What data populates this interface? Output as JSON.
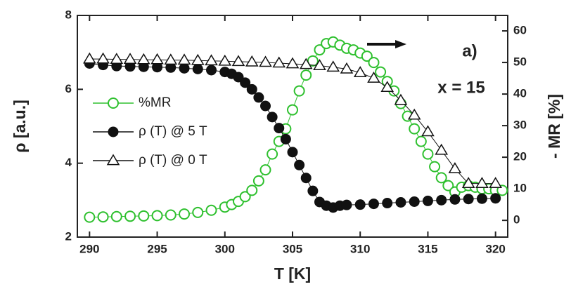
{
  "chart_data": {
    "type": "line",
    "x_label": "T [K]",
    "y_label": "ρ [a.u.]",
    "y2_label": "- MR [%]",
    "annotations": [
      "a)",
      "x = 15"
    ],
    "xlim": [
      289.1,
      320.9
    ],
    "xticks": [
      290,
      295,
      300,
      305,
      310,
      315,
      320
    ],
    "ylim": [
      2,
      8
    ],
    "yticks": [
      2,
      4,
      6,
      8
    ],
    "y2lim": [
      -5.3,
      64.9
    ],
    "y2ticks": [
      0,
      10,
      20,
      30,
      40,
      50,
      60
    ],
    "series": [
      {
        "name": "%MR",
        "color": "#2ec02e",
        "marker": "circle-open",
        "axis": "y2",
        "x": [
          290,
          291,
          292,
          293,
          294,
          295,
          296,
          297,
          298,
          299,
          300,
          300.5,
          301,
          301.5,
          302,
          302.5,
          303,
          303.5,
          304,
          304.5,
          305,
          305.5,
          306,
          306.5,
          307,
          307.5,
          308,
          308.5,
          309,
          309.5,
          310,
          310.5,
          311,
          311.5,
          312,
          312.5,
          313,
          313.5,
          314,
          314.5,
          315,
          315.5,
          316,
          316.5,
          317,
          317.5,
          318,
          318.5,
          319,
          319.5,
          320,
          320.5
        ],
        "values": [
          1,
          1.1,
          1.2,
          1.3,
          1.4,
          1.5,
          1.7,
          2,
          2.5,
          3.2,
          4.2,
          5,
          6,
          7.5,
          9.5,
          12.5,
          16,
          21,
          25,
          29,
          35,
          41,
          46,
          50.5,
          54,
          56,
          56.5,
          55.5,
          54.5,
          54,
          53,
          52,
          50,
          47,
          44,
          41,
          37,
          33,
          29,
          25,
          21,
          17,
          13.5,
          11,
          9,
          10.5,
          11,
          10.5,
          10,
          10,
          9.5,
          9.5
        ]
      },
      {
        "name": "ρ (T) @ 5 T",
        "color": "#111111",
        "marker": "circle",
        "x": [
          290,
          291,
          292,
          293,
          294,
          295,
          296,
          297,
          298,
          299,
          300,
          300.5,
          301,
          301.5,
          302,
          302.5,
          303,
          303.5,
          304,
          304.5,
          305,
          305.5,
          306,
          306.5,
          307,
          307.5,
          308,
          308.5,
          309,
          310,
          311,
          312,
          313,
          314,
          315,
          316,
          317,
          318,
          319,
          320
        ],
        "values": [
          6.7,
          6.66,
          6.63,
          6.62,
          6.61,
          6.6,
          6.59,
          6.57,
          6.55,
          6.52,
          6.47,
          6.42,
          6.33,
          6.18,
          6.0,
          5.78,
          5.55,
          5.25,
          4.95,
          4.65,
          4.3,
          3.95,
          3.6,
          3.25,
          2.95,
          2.85,
          2.8,
          2.85,
          2.87,
          2.88,
          2.9,
          2.92,
          2.94,
          2.96,
          2.98,
          3.0,
          3.02,
          3.03,
          3.04,
          3.05
        ]
      },
      {
        "name": "ρ (T) @ 0 T",
        "color": "#111111",
        "marker": "triangle-open",
        "x": [
          290,
          291,
          292,
          293,
          294,
          295,
          296,
          297,
          298,
          299,
          300,
          301,
          302,
          303,
          304,
          305,
          306,
          307,
          308,
          309,
          310,
          311,
          312,
          313,
          314,
          315,
          316,
          317,
          318,
          319,
          320
        ],
        "values": [
          6.82,
          6.82,
          6.81,
          6.81,
          6.8,
          6.8,
          6.79,
          6.79,
          6.78,
          6.77,
          6.76,
          6.75,
          6.74,
          6.73,
          6.71,
          6.69,
          6.67,
          6.64,
          6.6,
          6.55,
          6.45,
          6.3,
          6.05,
          5.7,
          5.3,
          4.85,
          4.35,
          3.85,
          3.45,
          3.45,
          3.45
        ]
      }
    ]
  }
}
